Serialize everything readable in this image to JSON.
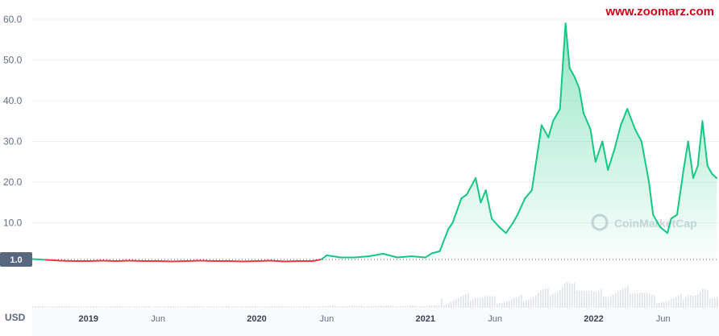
{
  "site_url": "www.zoomarz.com",
  "watermark": "CoinMarketCap",
  "unit": "USD",
  "chart_data": {
    "type": "line",
    "title": "",
    "xlabel": "",
    "ylabel": "",
    "ylim": [
      0,
      60
    ],
    "y_ticks": [
      "60.0",
      "50.0",
      "40.0",
      "30.0",
      "20.0",
      "10.0"
    ],
    "baseline": {
      "value": 1.0,
      "label": "1.0"
    },
    "x_ticks": [
      {
        "label": "2019",
        "date": "2019-01-01",
        "major": true
      },
      {
        "label": "Jun",
        "date": "2019-06-01",
        "major": false
      },
      {
        "label": "2020",
        "date": "2020-01-01",
        "major": true
      },
      {
        "label": "Jun",
        "date": "2020-06-01",
        "major": false
      },
      {
        "label": "2021",
        "date": "2021-01-01",
        "major": true
      },
      {
        "label": "Jun",
        "date": "2021-06-01",
        "major": false
      },
      {
        "label": "2022",
        "date": "2022-01-01",
        "major": true
      },
      {
        "label": "Jun",
        "date": "2022-06-01",
        "major": false
      }
    ],
    "series": [
      {
        "colors": {
          "above": "#16c784",
          "below": "#ea3943"
        },
        "x": [
          "2018-09-01",
          "2018-10-01",
          "2018-11-01",
          "2018-12-01",
          "2019-01-01",
          "2019-02-01",
          "2019-03-01",
          "2019-04-01",
          "2019-05-01",
          "2019-06-01",
          "2019-07-01",
          "2019-08-01",
          "2019-09-01",
          "2019-10-01",
          "2019-11-01",
          "2019-12-01",
          "2020-01-01",
          "2020-02-01",
          "2020-03-01",
          "2020-04-01",
          "2020-05-01",
          "2020-05-20",
          "2020-06-01",
          "2020-07-01",
          "2020-08-01",
          "2020-09-01",
          "2020-10-01",
          "2020-11-01",
          "2020-12-01",
          "2021-01-01",
          "2021-01-15",
          "2021-02-01",
          "2021-02-20",
          "2021-03-01",
          "2021-03-20",
          "2021-04-01",
          "2021-04-20",
          "2021-05-01",
          "2021-05-12",
          "2021-05-25",
          "2021-06-10",
          "2021-06-25",
          "2021-07-10",
          "2021-07-20",
          "2021-08-05",
          "2021-08-20",
          "2021-09-01",
          "2021-09-10",
          "2021-09-25",
          "2021-10-05",
          "2021-10-20",
          "2021-11-01",
          "2021-11-10",
          "2021-11-20",
          "2021-12-01",
          "2021-12-10",
          "2021-12-25",
          "2022-01-05",
          "2022-01-20",
          "2022-02-01",
          "2022-02-15",
          "2022-03-01",
          "2022-03-15",
          "2022-04-01",
          "2022-04-15",
          "2022-05-01",
          "2022-05-10",
          "2022-05-25",
          "2022-06-10",
          "2022-06-18",
          "2022-07-01",
          "2022-07-15",
          "2022-07-25",
          "2022-08-05",
          "2022-08-15",
          "2022-08-25",
          "2022-09-05",
          "2022-09-15",
          "2022-09-25"
        ],
        "y": [
          1.1,
          0.9,
          0.7,
          0.6,
          0.6,
          0.7,
          0.6,
          0.7,
          0.6,
          0.6,
          0.5,
          0.6,
          0.7,
          0.6,
          0.6,
          0.5,
          0.6,
          0.7,
          0.5,
          0.6,
          0.6,
          1.0,
          2.0,
          1.5,
          1.5,
          1.8,
          2.4,
          1.5,
          1.8,
          1.5,
          2.5,
          3.0,
          8.5,
          10.0,
          16.0,
          17.0,
          21.0,
          15.0,
          18.0,
          11.0,
          9.0,
          7.5,
          10.0,
          12.0,
          16.0,
          18.0,
          27.0,
          34.0,
          31.0,
          35.0,
          38.0,
          59.0,
          48.0,
          46.0,
          43.0,
          37.0,
          33.0,
          25.0,
          30.0,
          23.0,
          28.0,
          34.0,
          38.0,
          33.0,
          30.0,
          20.0,
          12.0,
          9.0,
          7.5,
          11.0,
          12.0,
          23.0,
          30.0,
          21.0,
          24.0,
          35.0,
          24.0,
          22.0,
          21.0
        ]
      }
    ]
  }
}
